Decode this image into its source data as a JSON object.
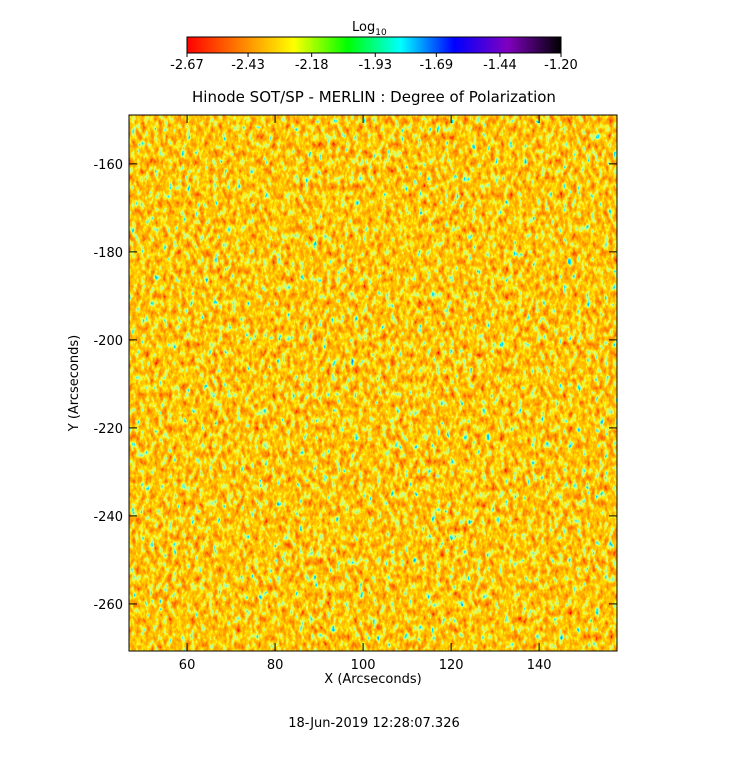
{
  "chart_data": {
    "type": "heatmap",
    "title": "Hinode SOT/SP - MERLIN : Degree of Polarization",
    "xlabel": "X (Arcseconds)",
    "ylabel": "Y (Arcseconds)",
    "xlim": [
      46.8,
      157.7
    ],
    "xticks": [
      60,
      80,
      100,
      120,
      140
    ],
    "ylim": [
      -270.7,
      -148.9
    ],
    "yticks": [
      -160,
      -180,
      -200,
      -220,
      -240,
      -260
    ],
    "colorbar": {
      "label": "Log",
      "subscript": "10",
      "clim": [
        -2.67,
        -1.2
      ],
      "ticks": [
        -2.67,
        -2.43,
        -2.18,
        -1.93,
        -1.69,
        -1.44,
        {
          "value": -1.2,
          "label": "-1.20"
        }
      ],
      "colormap": [
        "#ff0000",
        "#ff8000",
        "#ffff00",
        "#00ff00",
        "#00ffff",
        "#0000ff",
        "#8000c0",
        "#000000"
      ]
    },
    "footer": "18-Jun-2019 12:28:07.326"
  }
}
